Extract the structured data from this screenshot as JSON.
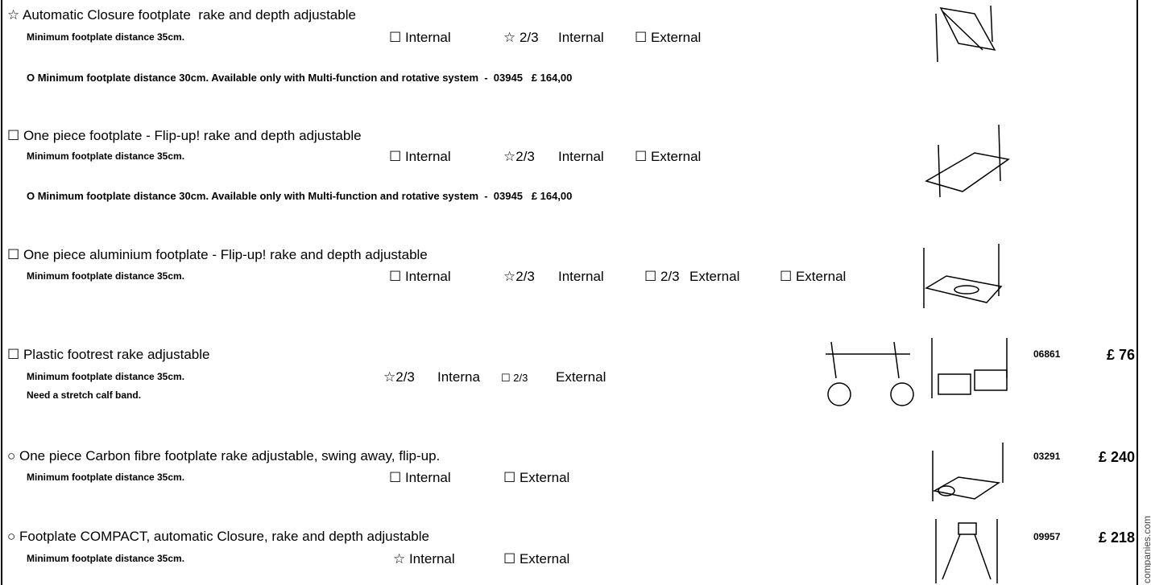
{
  "items": [
    {
      "title": "☆ Automatic Closure footplate  rake and depth adjustable",
      "min_distance": "Minimum footplate distance 35cm.",
      "options": [
        "☐ Internal",
        "☆ 2/3",
        "Internal",
        "☐ External"
      ],
      "note": "O Minimum footplate distance 30cm. Available only with Multi-function and rotative system  -  03945   £ 164,00"
    },
    {
      "title": "☐ One piece footplate - Flip-up! rake and depth adjustable",
      "min_distance": "Minimum footplate distance 35cm.",
      "options": [
        "☐ Internal",
        "☆2/3",
        "Internal",
        "☐ External"
      ],
      "note": "O Minimum footplate distance 30cm. Available only with Multi-function and rotative system  -  03945   £ 164,00"
    },
    {
      "title": "☐ One piece aluminium footplate - Flip-up! rake and depth adjustable",
      "min_distance": "Minimum footplate distance 35cm.",
      "options": [
        "☐ Internal",
        "☆2/3",
        "Internal",
        "☐ 2/3",
        "External",
        "☐ External"
      ]
    },
    {
      "title": "☐ Plastic footrest rake adjustable",
      "min_distance": "Minimum footplate distance 35cm.",
      "options": [
        "☆2/3",
        "Interna",
        "☐ 2/3",
        "External"
      ],
      "note": "Need a stretch calf band.",
      "code": "06861",
      "price": "£ 76"
    },
    {
      "title": "○ One piece Carbon fibre footplate rake adjustable, swing away, flip-up.",
      "min_distance": "Minimum footplate distance 35cm.",
      "options": [
        "☐ Internal",
        "☐ External"
      ],
      "code": "03291",
      "price": "£ 240"
    },
    {
      "title": "○ Footplate COMPACT, automatic Closure, rake and depth adjustable",
      "min_distance": "Minimum footplate distance 35cm.",
      "options": [
        "☆ Internal",
        "☐ External"
      ],
      "code": "09957",
      "price": "£ 218"
    }
  ],
  "side_text": "companies.com"
}
